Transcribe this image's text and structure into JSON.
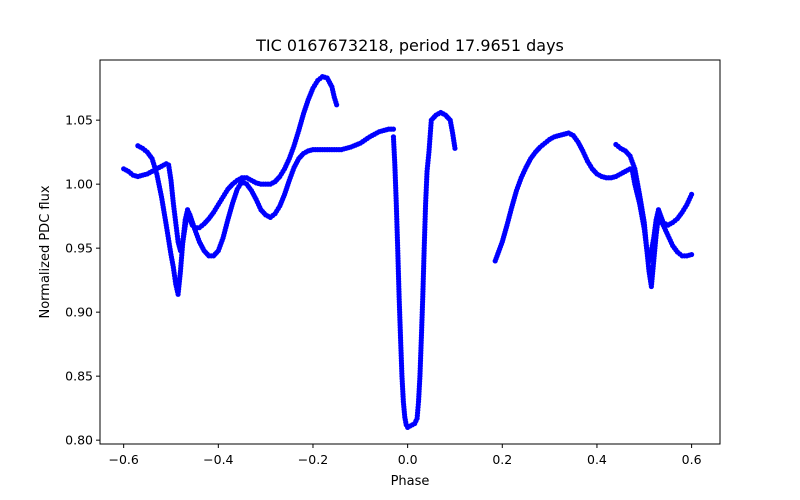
{
  "chart_data": {
    "type": "scatter",
    "title": "TIC 0167673218, period 17.9651 days",
    "xlabel": "Phase",
    "ylabel": "Normalized PDC flux",
    "xlim": [
      -0.65,
      0.66
    ],
    "ylim": [
      0.797,
      1.097
    ],
    "xticks": [
      -0.6,
      -0.4,
      -0.2,
      0.0,
      0.2,
      0.4,
      0.6
    ],
    "xtick_labels": [
      "−0.6",
      "−0.4",
      "−0.2",
      "0.0",
      "0.2",
      "0.4",
      "0.6"
    ],
    "yticks": [
      0.8,
      0.85,
      0.9,
      0.95,
      1.0,
      1.05
    ],
    "ytick_labels": [
      "0.80",
      "0.85",
      "0.90",
      "0.95",
      "1.00",
      "1.05"
    ],
    "grid": false,
    "marker_color": "#0000ff",
    "series": [
      {
        "curves": [
          [
            [
              -0.6,
              1.012
            ],
            [
              -0.59,
              1.01
            ],
            [
              -0.58,
              1.007
            ],
            [
              -0.57,
              1.006
            ],
            [
              -0.56,
              1.007
            ],
            [
              -0.55,
              1.008
            ],
            [
              -0.54,
              1.01
            ],
            [
              -0.53,
              1.012
            ],
            [
              -0.52,
              1.014
            ],
            [
              -0.51,
              1.016
            ],
            [
              -0.505,
              1.015
            ],
            [
              -0.5,
              1.003
            ],
            [
              -0.495,
              0.985
            ],
            [
              -0.49,
              0.97
            ],
            [
              -0.485,
              0.955
            ],
            [
              -0.48,
              0.948
            ],
            [
              -0.475,
              0.955
            ],
            [
              -0.47,
              0.967
            ],
            [
              -0.465,
              0.977
            ],
            [
              -0.46,
              0.973
            ],
            [
              -0.455,
              0.968
            ],
            [
              -0.45,
              0.966
            ],
            [
              -0.44,
              0.966
            ],
            [
              -0.43,
              0.969
            ],
            [
              -0.42,
              0.973
            ],
            [
              -0.41,
              0.978
            ],
            [
              -0.4,
              0.984
            ],
            [
              -0.39,
              0.99
            ],
            [
              -0.38,
              0.996
            ],
            [
              -0.37,
              1.0
            ],
            [
              -0.36,
              1.003
            ],
            [
              -0.35,
              1.005
            ],
            [
              -0.34,
              1.005
            ],
            [
              -0.33,
              1.003
            ],
            [
              -0.32,
              1.001
            ],
            [
              -0.31,
              1.0
            ],
            [
              -0.3,
              1.0
            ],
            [
              -0.29,
              1.0
            ],
            [
              -0.28,
              1.002
            ],
            [
              -0.27,
              1.006
            ],
            [
              -0.26,
              1.012
            ],
            [
              -0.25,
              1.02
            ],
            [
              -0.24,
              1.03
            ],
            [
              -0.23,
              1.042
            ],
            [
              -0.22,
              1.055
            ],
            [
              -0.21,
              1.066
            ],
            [
              -0.2,
              1.075
            ],
            [
              -0.19,
              1.081
            ],
            [
              -0.18,
              1.084
            ],
            [
              -0.17,
              1.083
            ],
            [
              -0.16,
              1.076
            ],
            [
              -0.155,
              1.068
            ],
            [
              -0.15,
              1.062
            ]
          ],
          [
            [
              -0.57,
              1.03
            ],
            [
              -0.56,
              1.028
            ],
            [
              -0.55,
              1.025
            ],
            [
              -0.54,
              1.02
            ],
            [
              -0.53,
              1.008
            ],
            [
              -0.52,
              0.99
            ],
            [
              -0.51,
              0.968
            ],
            [
              -0.5,
              0.945
            ],
            [
              -0.495,
              0.935
            ],
            [
              -0.49,
              0.922
            ],
            [
              -0.485,
              0.914
            ],
            [
              -0.48,
              0.932
            ],
            [
              -0.475,
              0.955
            ],
            [
              -0.47,
              0.972
            ],
            [
              -0.465,
              0.98
            ],
            [
              -0.46,
              0.976
            ],
            [
              -0.45,
              0.965
            ],
            [
              -0.44,
              0.955
            ],
            [
              -0.43,
              0.948
            ],
            [
              -0.42,
              0.944
            ],
            [
              -0.41,
              0.944
            ],
            [
              -0.4,
              0.948
            ],
            [
              -0.39,
              0.958
            ],
            [
              -0.38,
              0.972
            ],
            [
              -0.37,
              0.985
            ],
            [
              -0.36,
              0.996
            ],
            [
              -0.35,
              1.002
            ],
            [
              -0.34,
              1.0
            ],
            [
              -0.33,
              0.995
            ],
            [
              -0.32,
              0.988
            ],
            [
              -0.31,
              0.98
            ],
            [
              -0.3,
              0.976
            ],
            [
              -0.29,
              0.974
            ],
            [
              -0.28,
              0.977
            ],
            [
              -0.27,
              0.983
            ],
            [
              -0.26,
              0.992
            ],
            [
              -0.25,
              1.003
            ],
            [
              -0.24,
              1.013
            ],
            [
              -0.23,
              1.02
            ],
            [
              -0.22,
              1.024
            ],
            [
              -0.21,
              1.026
            ],
            [
              -0.2,
              1.027
            ],
            [
              -0.18,
              1.027
            ],
            [
              -0.16,
              1.027
            ],
            [
              -0.14,
              1.027
            ],
            [
              -0.12,
              1.029
            ],
            [
              -0.1,
              1.032
            ],
            [
              -0.08,
              1.037
            ],
            [
              -0.06,
              1.041
            ],
            [
              -0.04,
              1.043
            ],
            [
              -0.03,
              1.043
            ]
          ],
          [
            [
              -0.03,
              1.037
            ],
            [
              -0.027,
              1.015
            ],
            [
              -0.024,
              0.985
            ],
            [
              -0.021,
              0.95
            ],
            [
              -0.018,
              0.912
            ],
            [
              -0.015,
              0.88
            ],
            [
              -0.012,
              0.85
            ],
            [
              -0.009,
              0.83
            ],
            [
              -0.006,
              0.818
            ],
            [
              -0.003,
              0.812
            ],
            [
              0.0,
              0.81
            ],
            [
              0.005,
              0.811
            ],
            [
              0.01,
              0.812
            ],
            [
              0.015,
              0.813
            ],
            [
              0.02,
              0.817
            ],
            [
              0.023,
              0.83
            ],
            [
              0.026,
              0.85
            ],
            [
              0.029,
              0.88
            ],
            [
              0.032,
              0.912
            ],
            [
              0.035,
              0.95
            ],
            [
              0.038,
              0.985
            ],
            [
              0.041,
              1.01
            ],
            [
              0.045,
              1.025
            ],
            [
              0.05,
              1.05
            ],
            [
              0.06,
              1.054
            ],
            [
              0.07,
              1.056
            ],
            [
              0.08,
              1.054
            ],
            [
              0.09,
              1.05
            ],
            [
              0.095,
              1.04
            ],
            [
              0.1,
              1.028
            ]
          ],
          [
            [
              0.185,
              0.94
            ],
            [
              0.2,
              0.955
            ],
            [
              0.21,
              0.968
            ],
            [
              0.22,
              0.982
            ],
            [
              0.23,
              0.995
            ],
            [
              0.24,
              1.005
            ],
            [
              0.25,
              1.013
            ],
            [
              0.26,
              1.02
            ],
            [
              0.27,
              1.025
            ],
            [
              0.28,
              1.029
            ],
            [
              0.29,
              1.032
            ],
            [
              0.3,
              1.035
            ],
            [
              0.31,
              1.037
            ],
            [
              0.32,
              1.038
            ],
            [
              0.33,
              1.039
            ],
            [
              0.34,
              1.04
            ],
            [
              0.35,
              1.038
            ],
            [
              0.36,
              1.033
            ],
            [
              0.37,
              1.026
            ],
            [
              0.38,
              1.018
            ],
            [
              0.39,
              1.012
            ],
            [
              0.4,
              1.008
            ],
            [
              0.41,
              1.006
            ],
            [
              0.42,
              1.005
            ],
            [
              0.43,
              1.005
            ],
            [
              0.44,
              1.006
            ],
            [
              0.45,
              1.008
            ],
            [
              0.46,
              1.01
            ],
            [
              0.47,
              1.012
            ],
            [
              0.475,
              1.01
            ],
            [
              0.48,
              1.0
            ],
            [
              0.49,
              0.985
            ],
            [
              0.5,
              0.965
            ],
            [
              0.505,
              0.95
            ],
            [
              0.51,
              0.94
            ],
            [
              0.515,
              0.948
            ],
            [
              0.52,
              0.958
            ],
            [
              0.525,
              0.972
            ],
            [
              0.53,
              0.98
            ],
            [
              0.535,
              0.975
            ],
            [
              0.54,
              0.97
            ],
            [
              0.55,
              0.968
            ],
            [
              0.56,
              0.97
            ],
            [
              0.57,
              0.973
            ],
            [
              0.58,
              0.978
            ],
            [
              0.59,
              0.984
            ],
            [
              0.6,
              0.992
            ]
          ],
          [
            [
              0.44,
              1.031
            ],
            [
              0.45,
              1.028
            ],
            [
              0.46,
              1.026
            ],
            [
              0.47,
              1.022
            ],
            [
              0.48,
              1.012
            ],
            [
              0.49,
              0.992
            ],
            [
              0.5,
              0.97
            ],
            [
              0.505,
              0.95
            ],
            [
              0.51,
              0.932
            ],
            [
              0.515,
              0.92
            ],
            [
              0.52,
              0.94
            ],
            [
              0.525,
              0.96
            ],
            [
              0.53,
              0.975
            ],
            [
              0.54,
              0.968
            ],
            [
              0.55,
              0.96
            ],
            [
              0.56,
              0.952
            ],
            [
              0.57,
              0.947
            ],
            [
              0.58,
              0.944
            ],
            [
              0.59,
              0.944
            ],
            [
              0.6,
              0.945
            ]
          ]
        ]
      }
    ]
  }
}
